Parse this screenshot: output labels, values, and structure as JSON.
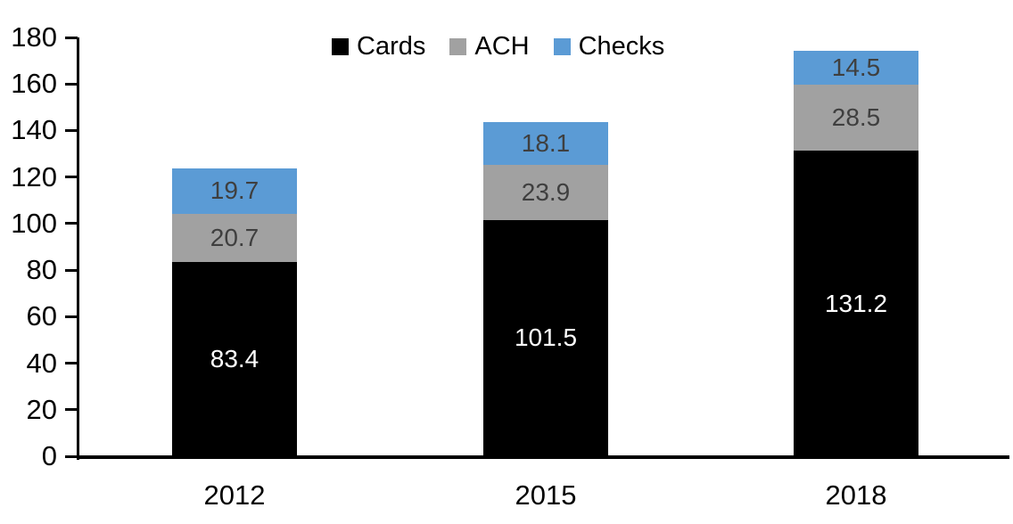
{
  "chart_data": {
    "type": "bar",
    "variant": "stacked-column",
    "title": "",
    "categories": [
      "2012",
      "2015",
      "2018"
    ],
    "series": [
      {
        "name": "Cards",
        "values": [
          83.4,
          101.5,
          131.2
        ],
        "color": "#000000",
        "label_color": "#ffffff"
      },
      {
        "name": "ACH",
        "values": [
          20.7,
          23.9,
          28.5
        ],
        "color": "#a1a1a1",
        "label_color": "#3f3f3f"
      },
      {
        "name": "Checks",
        "values": [
          19.7,
          18.1,
          14.5
        ],
        "color": "#5b9bd5",
        "label_color": "#3f3f3f"
      }
    ],
    "totals": [
      123.8,
      143.5,
      174.2
    ],
    "xlabel": "",
    "ylabel": "",
    "ylim": [
      0,
      180
    ],
    "yticks": [
      0,
      20,
      40,
      60,
      80,
      100,
      120,
      140,
      160,
      180
    ],
    "grid": false,
    "legend_position": "top-center",
    "axis_color": "#000000",
    "background": "#ffffff",
    "data_labels": "one-decimal"
  }
}
